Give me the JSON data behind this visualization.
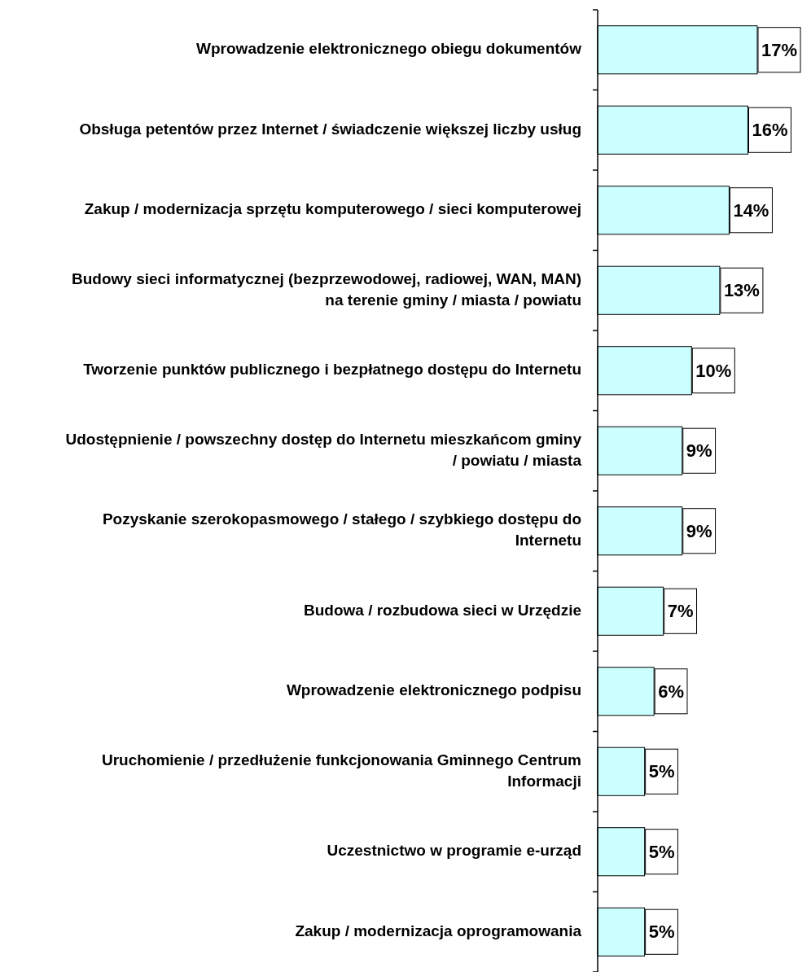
{
  "chart_data": {
    "type": "bar",
    "orientation": "horizontal",
    "color": "#ccffff",
    "categories": [
      "Wprowadzenie elektronicznego obiegu dokumentów",
      "Obsługa petentów przez Internet / świadczenie większej liczby usług",
      "Zakup / modernizacja sprzętu komputerowego / sieci komputerowej",
      "Budowy sieci informatycznej (bezprzewodowej, radiowej, WAN, MAN) na terenie gminy / miasta / powiatu",
      "Tworzenie punktów publicznego i bezpłatnego dostępu do Internetu",
      "Udostępnienie / powszechny dostęp do Internetu mieszkańcom gminy / powiatu / miasta",
      "Pozyskanie szerokopasmowego / stałego / szybkiego dostępu do Internetu",
      "Budowa / rozbudowa sieci w Urzędzie",
      "Wprowadzenie elektronicznego podpisu",
      "Uruchomienie / przedłużenie funkcjonowania Gminnego Centrum Informacji",
      "Uczestnictwo w programie e-urząd",
      "Zakup / modernizacja oprogramowania"
    ],
    "values": [
      17,
      16,
      14,
      13,
      10,
      9,
      9,
      7,
      6,
      5,
      5,
      5
    ],
    "value_labels": [
      "17%",
      "16%",
      "14%",
      "13%",
      "10%",
      "9%",
      "9%",
      "7%",
      "6%",
      "5%",
      "5%",
      "5%"
    ]
  }
}
